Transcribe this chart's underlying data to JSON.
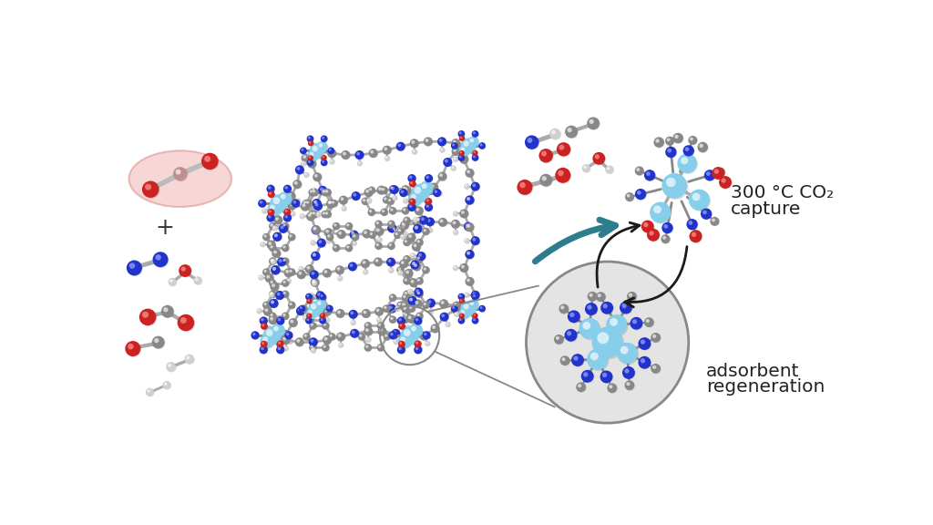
{
  "background_color": "#ffffff",
  "text_capture": "300 °C CO₂\ncapture",
  "text_regen": "adsorbent\nregeneration",
  "text_plus": "+",
  "arrow_color": "#2e7d8c",
  "cycle_arrow_color": "#1a1a1a",
  "ellipse_fill": "#f5c5c5",
  "ellipse_edge": "#e0a0a0",
  "zn_color": "#87ceeb",
  "c_color": "#888888",
  "n_color": "#2233cc",
  "o_color": "#cc2222",
  "h_color": "#d0d0d0",
  "bond_color": "#999999",
  "circle_bg": "#e0e0e0",
  "circle_edge": "#888888",
  "mof_atoms": {
    "Zn_positions": [],
    "N_positions": [],
    "C_positions": [],
    "O_positions": []
  }
}
